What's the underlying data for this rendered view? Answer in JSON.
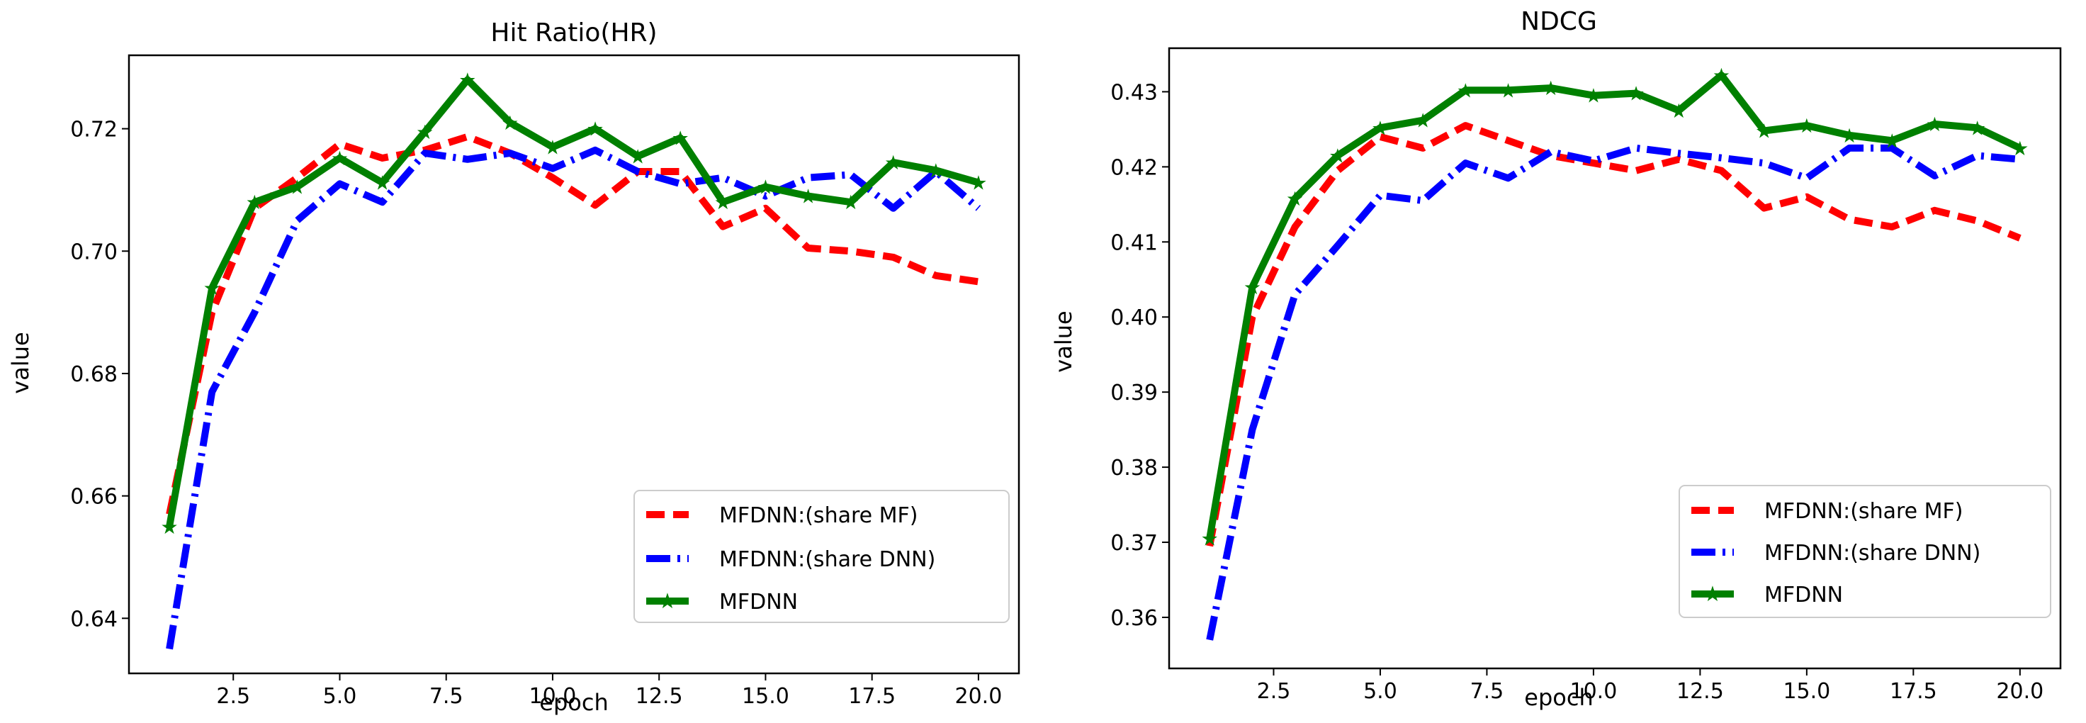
{
  "chart_data": [
    {
      "type": "line",
      "title": "Hit Ratio(HR)",
      "xlabel": "epoch",
      "ylabel": "value",
      "xlim": [
        0.05,
        20.95
      ],
      "ylim": [
        0.631,
        0.732
      ],
      "xticks": [
        2.5,
        5.0,
        7.5,
        10.0,
        12.5,
        15.0,
        17.5,
        20.0
      ],
      "xtick_labels": [
        "2.5",
        "5.0",
        "7.5",
        "10.0",
        "12.5",
        "15.0",
        "17.5",
        "20.0"
      ],
      "yticks": [
        0.64,
        0.66,
        0.68,
        0.7,
        0.72
      ],
      "ytick_labels": [
        "0.64",
        "0.66",
        "0.68",
        "0.70",
        "0.72"
      ],
      "legend_position": "lower-right",
      "x": [
        1,
        2,
        3,
        4,
        5,
        6,
        7,
        8,
        9,
        10,
        11,
        12,
        13,
        14,
        15,
        16,
        17,
        18,
        19,
        20
      ],
      "series": [
        {
          "name": "MFDNN:(share MF)",
          "color": "#ff0000",
          "style": "dashed",
          "values": [
            0.657,
            0.69,
            0.707,
            0.712,
            0.7175,
            0.7152,
            0.7165,
            0.7187,
            0.716,
            0.712,
            0.7075,
            0.713,
            0.713,
            0.704,
            0.707,
            0.7005,
            0.7,
            0.699,
            0.696,
            0.695
          ]
        },
        {
          "name": "MFDNN:(share DNN)",
          "color": "#0000ff",
          "style": "dashdot",
          "values": [
            0.635,
            0.677,
            0.69,
            0.705,
            0.711,
            0.708,
            0.716,
            0.715,
            0.716,
            0.7135,
            0.7165,
            0.713,
            0.711,
            0.712,
            0.709,
            0.712,
            0.7125,
            0.707,
            0.713,
            0.707
          ]
        },
        {
          "name": "MFDNN",
          "color": "#008000",
          "style": "solid-star",
          "values": [
            0.655,
            0.694,
            0.708,
            0.7105,
            0.7152,
            0.7112,
            0.7195,
            0.728,
            0.721,
            0.717,
            0.72,
            0.7155,
            0.7185,
            0.708,
            0.7105,
            0.709,
            0.708,
            0.7145,
            0.7132,
            0.7112
          ]
        }
      ]
    },
    {
      "type": "line",
      "title": "NDCG",
      "xlabel": "epoch",
      "ylabel": "value",
      "xlim": [
        0.05,
        20.95
      ],
      "ylim": [
        0.3532,
        0.4358
      ],
      "xticks": [
        2.5,
        5.0,
        7.5,
        10.0,
        12.5,
        15.0,
        17.5,
        20.0
      ],
      "xtick_labels": [
        "2.5",
        "5.0",
        "7.5",
        "10.0",
        "12.5",
        "15.0",
        "17.5",
        "20.0"
      ],
      "yticks": [
        0.36,
        0.37,
        0.38,
        0.39,
        0.4,
        0.41,
        0.42,
        0.43
      ],
      "ytick_labels": [
        "0.36",
        "0.37",
        "0.38",
        "0.39",
        "0.40",
        "0.41",
        "0.42",
        "0.43"
      ],
      "legend_position": "lower-right",
      "x": [
        1,
        2,
        3,
        4,
        5,
        6,
        7,
        8,
        9,
        10,
        11,
        12,
        13,
        14,
        15,
        16,
        17,
        18,
        19,
        20
      ],
      "series": [
        {
          "name": "MFDNN:(share MF)",
          "color": "#ff0000",
          "style": "dashed",
          "values": [
            0.3695,
            0.4,
            0.412,
            0.4195,
            0.424,
            0.4225,
            0.4255,
            0.4235,
            0.4215,
            0.4205,
            0.4195,
            0.421,
            0.4195,
            0.4145,
            0.416,
            0.413,
            0.412,
            0.4142,
            0.4128,
            0.4105
          ]
        },
        {
          "name": "MFDNN:(share DNN)",
          "color": "#0000ff",
          "style": "dashdot",
          "values": [
            0.357,
            0.385,
            0.403,
            0.4095,
            0.4162,
            0.4155,
            0.4205,
            0.4185,
            0.422,
            0.4208,
            0.4225,
            0.4218,
            0.4212,
            0.4205,
            0.4185,
            0.4225,
            0.4225,
            0.4188,
            0.4215,
            0.421
          ]
        },
        {
          "name": "MFDNN",
          "color": "#008000",
          "style": "solid-star",
          "values": [
            0.3705,
            0.404,
            0.4158,
            0.4215,
            0.4252,
            0.4262,
            0.4302,
            0.4302,
            0.4305,
            0.4295,
            0.4298,
            0.4275,
            0.4322,
            0.4248,
            0.4255,
            0.4242,
            0.4235,
            0.4257,
            0.4252,
            0.4225
          ]
        }
      ]
    }
  ]
}
